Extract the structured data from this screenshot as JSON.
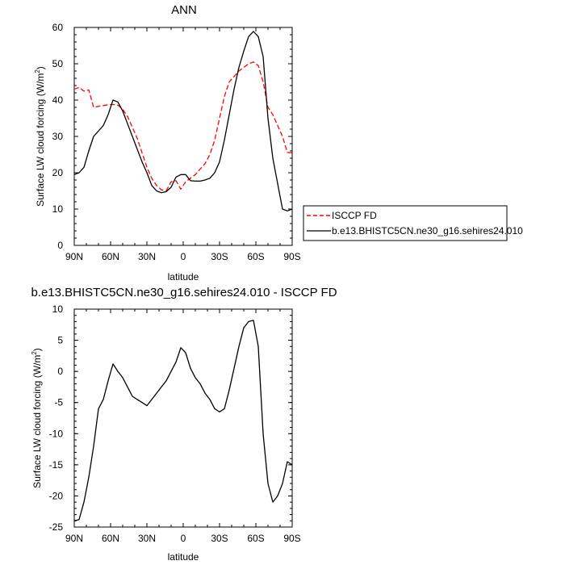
{
  "chart_data": [
    {
      "type": "line",
      "title": "ANN",
      "xlabel": "latitude",
      "ylabel": "Surface LW cloud forcing (W/m",
      "ylabel_sup": "2",
      "ylabel_close": ")",
      "xlim": [
        -90,
        90
      ],
      "ylim": [
        0,
        60
      ],
      "x_ticks": [
        {
          "v": -90,
          "label": "90N"
        },
        {
          "v": -60,
          "label": "60N"
        },
        {
          "v": -30,
          "label": "30N"
        },
        {
          "v": 0,
          "label": "0"
        },
        {
          "v": 30,
          "label": "30S"
        },
        {
          "v": 60,
          "label": "60S"
        },
        {
          "v": 90,
          "label": "90S"
        }
      ],
      "y_ticks": [
        {
          "v": 0,
          "label": "0"
        },
        {
          "v": 10,
          "label": "10"
        },
        {
          "v": 20,
          "label": "20"
        },
        {
          "v": 30,
          "label": "30"
        },
        {
          "v": 40,
          "label": "40"
        },
        {
          "v": 50,
          "label": "50"
        },
        {
          "v": 60,
          "label": "60"
        }
      ],
      "grid": false,
      "legend_position": "right",
      "series": [
        {
          "name": "ISCCP FD",
          "color": "#ff0000",
          "dash": true,
          "x": [
            -90,
            -86,
            -82,
            -78,
            -74,
            -70,
            -66,
            -62,
            -58,
            -54,
            -50,
            -46,
            -42,
            -38,
            -34,
            -30,
            -26,
            -22,
            -18,
            -14,
            -10,
            -6,
            -2,
            2,
            6,
            10,
            14,
            18,
            22,
            26,
            30,
            34,
            38,
            42,
            46,
            50,
            54,
            58,
            62,
            66,
            70,
            74,
            78,
            82,
            86,
            90
          ],
          "y": [
            43.0,
            43.5,
            42.5,
            42.8,
            38,
            38.3,
            38.5,
            38.7,
            38.8,
            38.6,
            37.5,
            35.5,
            32.5,
            29.5,
            25.5,
            21.5,
            18.5,
            16.5,
            15.3,
            15.1,
            17.5,
            17.8,
            15.5,
            17.5,
            18.5,
            19.5,
            21,
            22.5,
            25,
            29,
            35,
            41,
            45,
            46.5,
            48,
            49,
            50,
            50.5,
            49.5,
            45,
            38,
            36,
            33,
            30,
            25.6,
            25.5
          ]
        },
        {
          "name": "b.e13.BHISTC5CN.ne30_g16.sehires24.010",
          "color": "#000000",
          "dash": false,
          "x": [
            -90,
            -86,
            -82,
            -78,
            -74,
            -70,
            -66,
            -62,
            -58,
            -54,
            -50,
            -46,
            -42,
            -38,
            -34,
            -30,
            -26,
            -22,
            -18,
            -14,
            -10,
            -6,
            -2,
            2,
            6,
            10,
            14,
            18,
            22,
            26,
            30,
            34,
            38,
            42,
            46,
            50,
            54,
            58,
            62,
            66,
            70,
            74,
            78,
            82,
            86,
            90
          ],
          "y": [
            19.5,
            20,
            21.5,
            26,
            30,
            31.5,
            33,
            36,
            40,
            39.5,
            37,
            33.5,
            30,
            26.5,
            23,
            20,
            16.5,
            15,
            14.5,
            14.8,
            16,
            18.8,
            19.5,
            19.5,
            17.8,
            17.7,
            17.7,
            18,
            18.5,
            20,
            23,
            29,
            36,
            43,
            49,
            53.5,
            57.5,
            58.9,
            57.5,
            52,
            35,
            24,
            17,
            10,
            9.5,
            10
          ]
        }
      ]
    },
    {
      "type": "line",
      "title": "b.e13.BHISTC5CN.ne30_g16.sehires24.010 - ISCCP FD",
      "xlabel": "latitude",
      "ylabel": "Surface LW cloud forcing (W/m",
      "ylabel_sup": "2",
      "ylabel_close": ")",
      "xlim": [
        -90,
        90
      ],
      "ylim": [
        -25,
        10
      ],
      "x_ticks": [
        {
          "v": -90,
          "label": "90N"
        },
        {
          "v": -60,
          "label": "60N"
        },
        {
          "v": -30,
          "label": "30N"
        },
        {
          "v": 0,
          "label": "0"
        },
        {
          "v": 30,
          "label": "30S"
        },
        {
          "v": 60,
          "label": "60S"
        },
        {
          "v": 90,
          "label": "90S"
        }
      ],
      "y_ticks": [
        {
          "v": -25,
          "label": "-25"
        },
        {
          "v": -20,
          "label": "-20"
        },
        {
          "v": -15,
          "label": "-15"
        },
        {
          "v": -10,
          "label": "-10"
        },
        {
          "v": -5,
          "label": "-5"
        },
        {
          "v": 0,
          "label": "0"
        },
        {
          "v": 5,
          "label": "5"
        },
        {
          "v": 10,
          "label": "10"
        }
      ],
      "grid": false,
      "series": [
        {
          "color": "#000000",
          "dash": false,
          "x": [
            -90,
            -86,
            -82,
            -78,
            -74,
            -70,
            -66,
            -62,
            -58,
            -54,
            -50,
            -46,
            -42,
            -38,
            -34,
            -30,
            -26,
            -22,
            -18,
            -14,
            -10,
            -6,
            -2,
            2,
            6,
            10,
            14,
            18,
            22,
            26,
            30,
            34,
            38,
            42,
            46,
            50,
            54,
            58,
            62,
            66,
            70,
            74,
            78,
            82,
            86,
            90
          ],
          "y": [
            -24,
            -23.8,
            -21,
            -17,
            -12,
            -6,
            -4.5,
            -1.5,
            1.2,
            0,
            -1,
            -2.5,
            -4,
            -4.5,
            -5,
            -5.5,
            -4.5,
            -3.5,
            -2.5,
            -1.5,
            0,
            1.5,
            3.8,
            3,
            0.5,
            -1,
            -2,
            -3.5,
            -4.5,
            -6,
            -6.5,
            -6,
            -3,
            0.5,
            4,
            7,
            8,
            8.2,
            4,
            -10,
            -18,
            -21,
            -20,
            -18,
            -14.5,
            -15
          ]
        }
      ]
    }
  ]
}
